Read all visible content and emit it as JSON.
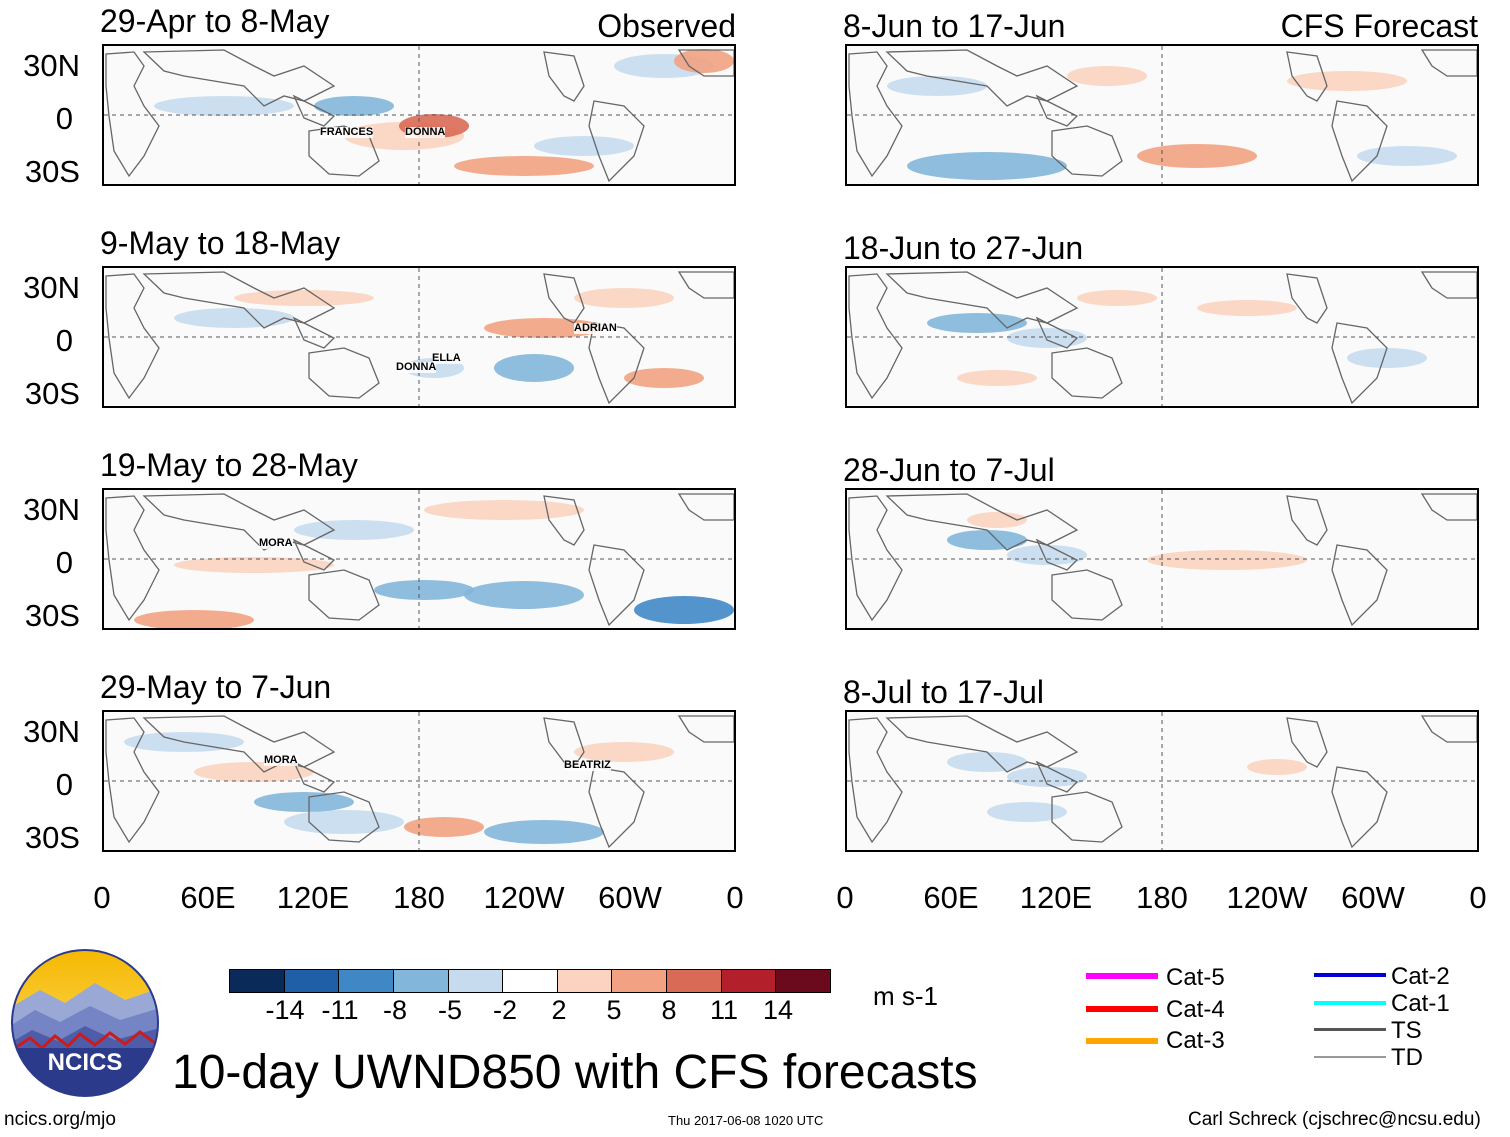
{
  "headers": {
    "left": "Observed",
    "right": "CFS Forecast"
  },
  "observed_panels": [
    {
      "title": "29-Apr to 8-May",
      "storms": [
        "FRANCES",
        "DONNA"
      ]
    },
    {
      "title": "9-May to 18-May",
      "storms": [
        "ADRIAN",
        "ELLA",
        "DONNA"
      ]
    },
    {
      "title": "19-May to 28-May",
      "storms": [
        "MORA"
      ]
    },
    {
      "title": "29-May to 7-Jun",
      "storms": [
        "MORA",
        "BEATRIZ"
      ]
    }
  ],
  "forecast_panels": [
    {
      "title": "8-Jun to 17-Jun"
    },
    {
      "title": "18-Jun to 27-Jun"
    },
    {
      "title": "28-Jun to 7-Jul"
    },
    {
      "title": "8-Jul to 17-Jul"
    }
  ],
  "lat_labels": [
    "30N",
    "0",
    "30S"
  ],
  "lon_labels": [
    "0",
    "60E",
    "120E",
    "180",
    "120W",
    "60W",
    "0"
  ],
  "colorbar": {
    "colors": [
      "#0a2a5a",
      "#1f5fa8",
      "#3f88c5",
      "#82b6da",
      "#c6dcee",
      "#ffffff",
      "#fbd3c0",
      "#f2a282",
      "#d96a55",
      "#b3202b",
      "#6a0a1c"
    ],
    "labels": [
      "-14",
      "-11",
      "-8",
      "-5",
      "-2",
      "2",
      "5",
      "8",
      "11",
      "14"
    ],
    "units": "m s-1"
  },
  "legend": [
    {
      "label": "Cat-5",
      "color": "#ff00ff"
    },
    {
      "label": "Cat-4",
      "color": "#ff0000"
    },
    {
      "label": "Cat-3",
      "color": "#ffa500"
    },
    {
      "label": "Cat-2",
      "color": "#0000dd"
    },
    {
      "label": "Cat-1",
      "color": "#00ffff"
    },
    {
      "label": "TS",
      "color": "#555555"
    },
    {
      "label": "TD",
      "color": "#999999"
    }
  ],
  "logo_text": "NCICS",
  "main_title": "10-day UWND850 with CFS forecasts",
  "footer": {
    "url": "ncics.org/mjo",
    "timestamp": "Thu 2017-06-08 1020 UTC",
    "author": "Carl Schreck (cjschrec@ncsu.edu)"
  }
}
